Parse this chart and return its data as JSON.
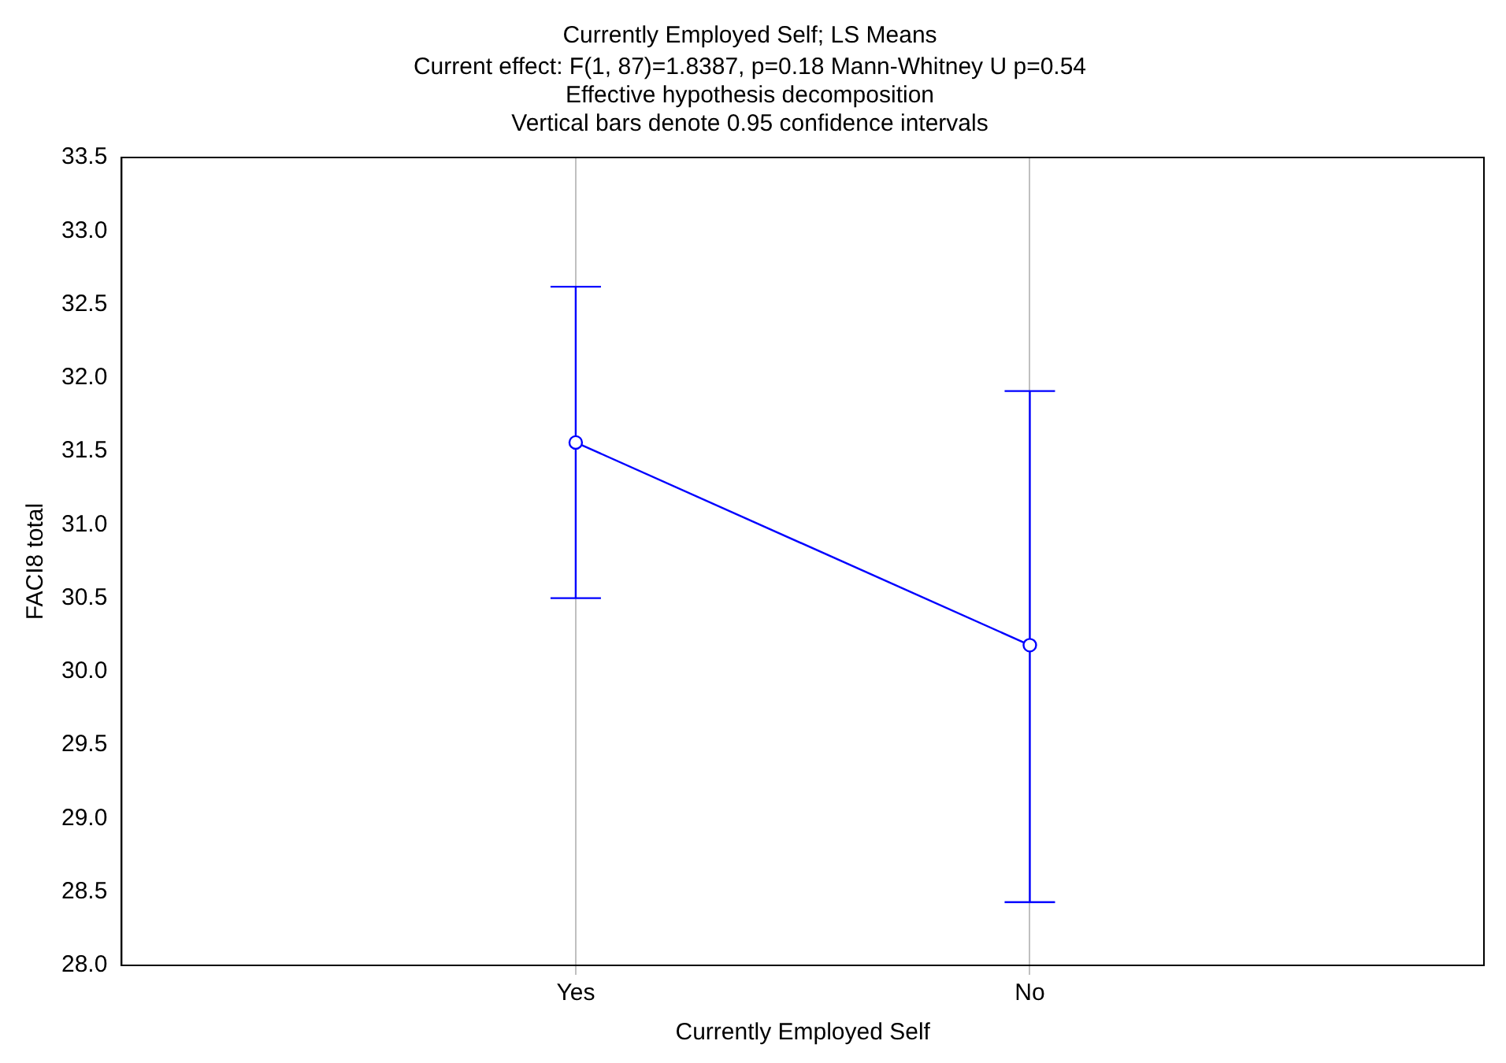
{
  "chart_data": {
    "type": "line",
    "title": "Currently Employed Self; LS Means",
    "subtitle": "Current effect: F(1, 87)=1.8387, p=0.18 Mann-Whitney U p=0.54\nEffective hypothesis decomposition\nVertical bars denote 0.95 confidence intervals",
    "xlabel": "Currently Employed Self",
    "ylabel": "FACI8 total",
    "categories": [
      "Yes",
      "No"
    ],
    "series": [
      {
        "color": "#0000ff",
        "values": [
          31.56,
          30.18
        ],
        "errors": [
          [
            30.5,
            32.62
          ],
          [
            28.43,
            31.91
          ]
        ]
      }
    ],
    "ylim": [
      28,
      33.5
    ],
    "yticks": [
      {
        "value": 28,
        "label": "28.0"
      },
      {
        "value": 28.5,
        "label": "28.5"
      },
      {
        "value": 29,
        "label": "29.0"
      },
      {
        "value": 29.5,
        "label": "29.5"
      },
      {
        "value": 30,
        "label": "30.0"
      },
      {
        "value": 30.5,
        "label": "30.5"
      },
      {
        "value": 31,
        "label": "31.0"
      },
      {
        "value": 31.5,
        "label": "31.5"
      },
      {
        "value": 32,
        "label": "32.0"
      },
      {
        "value": 32.5,
        "label": "32.5"
      },
      {
        "value": 33,
        "label": "33.0"
      },
      {
        "value": 33.5,
        "label": "33.5"
      }
    ],
    "grid": "x",
    "legend": false,
    "marker": "circle",
    "line_style": "solid"
  }
}
